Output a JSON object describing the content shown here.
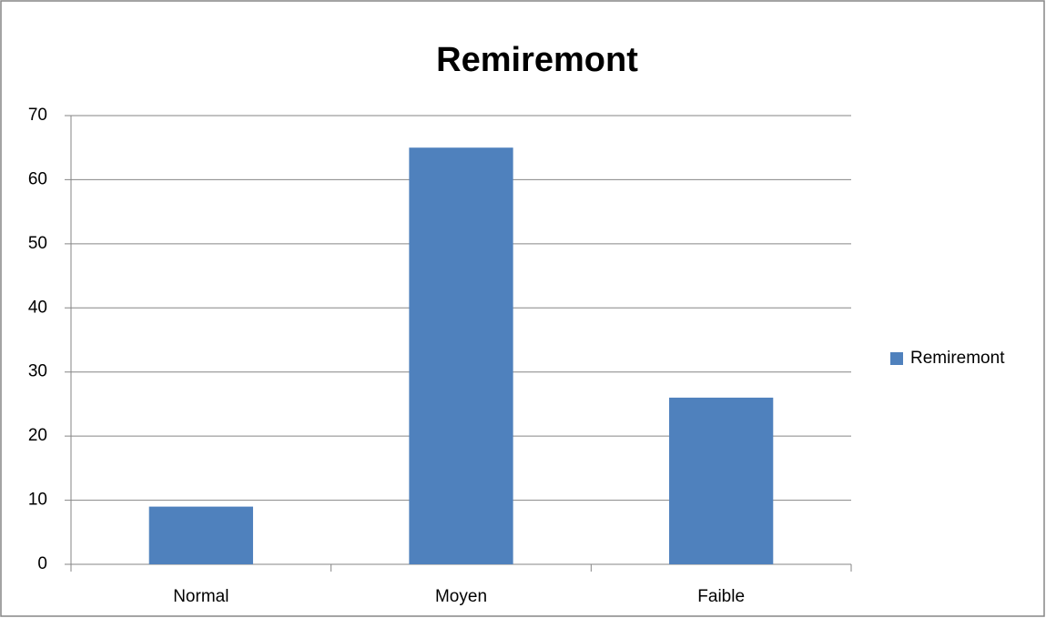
{
  "chart_data": {
    "type": "bar",
    "title": "Remiremont",
    "categories": [
      "Normal",
      "Moyen",
      "Faible"
    ],
    "series": [
      {
        "name": "Remiremont",
        "color": "#4f81bd",
        "values": [
          9,
          65,
          26
        ]
      }
    ],
    "ylim": [
      0,
      70
    ],
    "yticks": [
      0,
      10,
      20,
      30,
      40,
      50,
      60,
      70
    ],
    "grid": true,
    "legend": "right"
  }
}
